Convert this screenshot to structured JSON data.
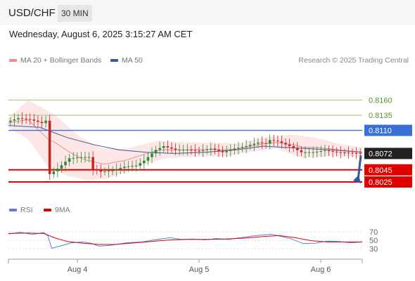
{
  "header": {
    "symbol": "USD/CHF",
    "timeframe": "30 MIN"
  },
  "datetime": "Wednesday, August 6, 2025 3:15:27 AM CET",
  "copyright": "Research © 2025 Trading Central",
  "colors": {
    "bollinger": "#f08c8c",
    "ma50": "#365d9f",
    "resistance": "#9bc27a",
    "resistance_label": "#5a8f2a",
    "pivot": "#3a6fd8",
    "support": "#e00000",
    "current": "#222222",
    "rsi": "#5a7fd8",
    "rsi_ma": "#e00000",
    "candle_up": "#2e8b3a",
    "candle_down": "#c62828",
    "forecast_arrow": "#2d5aa0"
  },
  "chart_data": {
    "type": "candlestick",
    "x_ticks": [
      "Aug 4",
      "Aug 5",
      "Aug 6"
    ],
    "y_range": [
      0.801,
      0.8172
    ],
    "legend": [
      "MA 20 + Bollinger Bands",
      "MA 50"
    ],
    "levels": [
      {
        "value": "0.8160",
        "kind": "resistance"
      },
      {
        "value": "0.8135",
        "kind": "resistance"
      },
      {
        "value": "0.8110",
        "kind": "pivot"
      },
      {
        "value": "0.8072",
        "kind": "current"
      },
      {
        "value": "0.8045",
        "kind": "support"
      },
      {
        "value": "0.8025",
        "kind": "support"
      }
    ],
    "price_path": [
      [
        0,
        0.8124
      ],
      [
        3,
        0.813
      ],
      [
        6,
        0.8128
      ],
      [
        9,
        0.8122
      ],
      [
        10,
        0.8126
      ],
      [
        11,
        0.8038
      ],
      [
        13,
        0.8047
      ],
      [
        16,
        0.8064
      ],
      [
        19,
        0.8066
      ],
      [
        21,
        0.8066
      ],
      [
        22,
        0.8046
      ],
      [
        24,
        0.8042
      ],
      [
        27,
        0.8044
      ],
      [
        30,
        0.805
      ],
      [
        33,
        0.8052
      ],
      [
        35,
        0.806
      ],
      [
        38,
        0.8078
      ],
      [
        40,
        0.8084
      ],
      [
        43,
        0.8078
      ],
      [
        46,
        0.8078
      ],
      [
        49,
        0.8076
      ],
      [
        52,
        0.808
      ],
      [
        55,
        0.8074
      ],
      [
        58,
        0.808
      ],
      [
        61,
        0.8084
      ],
      [
        64,
        0.809
      ],
      [
        66,
        0.8088
      ],
      [
        67,
        0.8094
      ],
      [
        69,
        0.8092
      ],
      [
        72,
        0.8084
      ],
      [
        75,
        0.8074
      ],
      [
        78,
        0.8074
      ],
      [
        81,
        0.8077
      ],
      [
        84,
        0.8074
      ],
      [
        87,
        0.8073
      ],
      [
        90,
        0.8072
      ]
    ],
    "bollinger_upper": [
      [
        0,
        0.813
      ],
      [
        5,
        0.816
      ],
      [
        12,
        0.8135
      ],
      [
        18,
        0.81
      ],
      [
        24,
        0.808
      ],
      [
        30,
        0.808
      ],
      [
        38,
        0.8093
      ],
      [
        45,
        0.809
      ],
      [
        52,
        0.809
      ],
      [
        58,
        0.8088
      ],
      [
        65,
        0.8098
      ],
      [
        72,
        0.8103
      ],
      [
        78,
        0.8098
      ],
      [
        84,
        0.8088
      ],
      [
        90,
        0.8082
      ]
    ],
    "bollinger_lower": [
      [
        0,
        0.8115
      ],
      [
        5,
        0.8095
      ],
      [
        10,
        0.805
      ],
      [
        15,
        0.8035
      ],
      [
        20,
        0.8028
      ],
      [
        25,
        0.803
      ],
      [
        30,
        0.8042
      ],
      [
        35,
        0.8055
      ],
      [
        40,
        0.8064
      ],
      [
        48,
        0.8067
      ],
      [
        55,
        0.8067
      ],
      [
        62,
        0.8075
      ],
      [
        68,
        0.808
      ],
      [
        75,
        0.8064
      ],
      [
        82,
        0.8068
      ],
      [
        90,
        0.8066
      ]
    ],
    "ma50": [
      [
        0,
        0.8118
      ],
      [
        8,
        0.8115
      ],
      [
        15,
        0.8098
      ],
      [
        22,
        0.8086
      ],
      [
        28,
        0.8078
      ],
      [
        35,
        0.8074
      ],
      [
        42,
        0.8072
      ],
      [
        50,
        0.8074
      ],
      [
        58,
        0.8078
      ],
      [
        65,
        0.8084
      ],
      [
        70,
        0.8082
      ],
      [
        76,
        0.808
      ],
      [
        82,
        0.8078
      ],
      [
        90,
        0.8074
      ]
    ],
    "forecast_target": "0.8025",
    "rsi_panel": {
      "legend": [
        "RSI",
        "9MA"
      ],
      "y_ticks": [
        "70",
        "50",
        "30"
      ],
      "rsi": [
        [
          0,
          65
        ],
        [
          3,
          69
        ],
        [
          6,
          64
        ],
        [
          9,
          68
        ],
        [
          10,
          61
        ],
        [
          11,
          31
        ],
        [
          13,
          36
        ],
        [
          16,
          44
        ],
        [
          19,
          46
        ],
        [
          21,
          43
        ],
        [
          23,
          36
        ],
        [
          26,
          38
        ],
        [
          30,
          44
        ],
        [
          34,
          46
        ],
        [
          38,
          52
        ],
        [
          41,
          56
        ],
        [
          44,
          52
        ],
        [
          47,
          53
        ],
        [
          50,
          51
        ],
        [
          53,
          54
        ],
        [
          56,
          52
        ],
        [
          59,
          56
        ],
        [
          62,
          60
        ],
        [
          65,
          63
        ],
        [
          67,
          64
        ],
        [
          69,
          60
        ],
        [
          72,
          53
        ],
        [
          75,
          42
        ],
        [
          78,
          43
        ],
        [
          81,
          48
        ],
        [
          84,
          47
        ],
        [
          87,
          44
        ],
        [
          90,
          46
        ]
      ],
      "rsi_ma": [
        [
          0,
          66
        ],
        [
          5,
          67
        ],
        [
          9,
          66
        ],
        [
          12,
          55
        ],
        [
          15,
          47
        ],
        [
          19,
          43
        ],
        [
          23,
          40
        ],
        [
          27,
          40
        ],
        [
          31,
          43
        ],
        [
          35,
          46
        ],
        [
          40,
          50
        ],
        [
          45,
          52
        ],
        [
          50,
          52
        ],
        [
          55,
          53
        ],
        [
          60,
          55
        ],
        [
          65,
          59
        ],
        [
          69,
          61
        ],
        [
          73,
          56
        ],
        [
          77,
          49
        ],
        [
          81,
          46
        ],
        [
          85,
          46
        ],
        [
          90,
          46
        ]
      ]
    }
  }
}
